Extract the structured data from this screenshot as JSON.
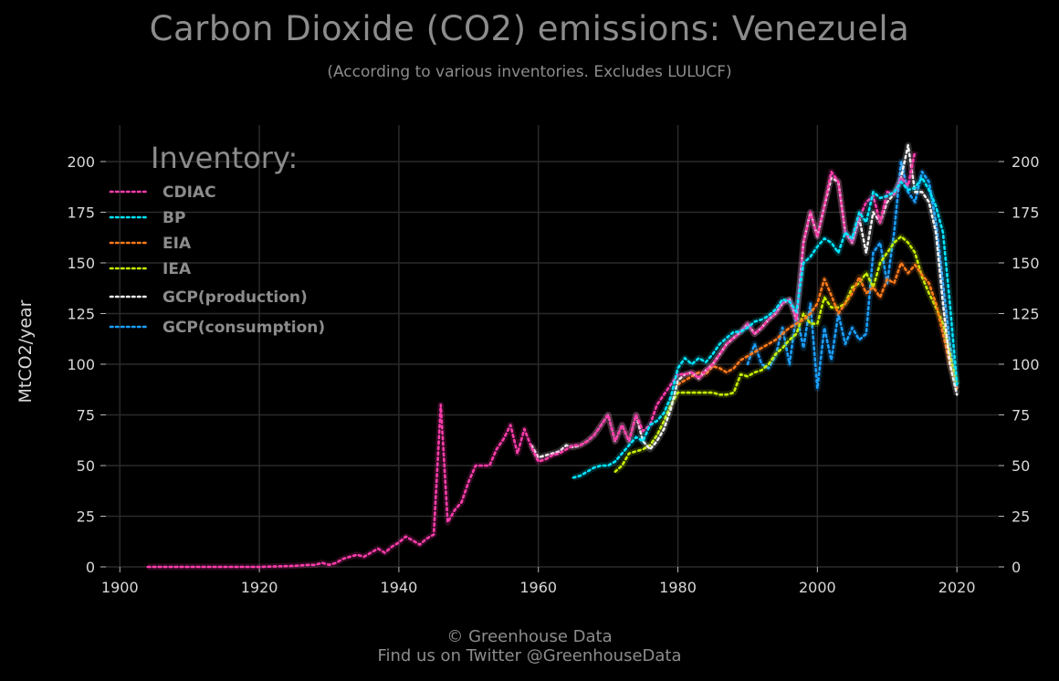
{
  "header": {
    "title": "Carbon Dioxide (CO2) emissions: Venezuela",
    "subtitle": "(According to various inventories. Excludes LULUCF)"
  },
  "footer": {
    "line1": "© Greenhouse Data",
    "line2": "Find us on Twitter @GreenhouseData"
  },
  "chart_data": {
    "type": "line",
    "title": "Carbon Dioxide (CO2) emissions: Venezuela",
    "subtitle": "(According to various inventories. Excludes LULUCF)",
    "xlabel": "",
    "ylabel": "MtCO2/year",
    "xlim": [
      1898,
      2026
    ],
    "ylim": [
      0,
      218
    ],
    "x_ticks": [
      1900,
      1920,
      1940,
      1960,
      1980,
      2000,
      2020
    ],
    "y_ticks": [
      0,
      25,
      50,
      75,
      100,
      125,
      150,
      175,
      200
    ],
    "grid": true,
    "y_axis_both_sides": true,
    "line_style": "dotted",
    "legend_title": "Inventory:",
    "legend_position": "top-left",
    "series": [
      {
        "name": "CDIAC",
        "color": "#ff3cac",
        "x": [
          1904,
          1910,
          1915,
          1920,
          1925,
          1927,
          1928,
          1929,
          1930,
          1931,
          1932,
          1933,
          1934,
          1935,
          1936,
          1937,
          1938,
          1939,
          1940,
          1941,
          1942,
          1943,
          1944,
          1945,
          1946,
          1947,
          1948,
          1949,
          1950,
          1951,
          1952,
          1953,
          1954,
          1955,
          1956,
          1957,
          1958,
          1959,
          1960,
          1961,
          1962,
          1963,
          1964,
          1965,
          1966,
          1967,
          1968,
          1969,
          1970,
          1971,
          1972,
          1973,
          1974,
          1975,
          1976,
          1977,
          1978,
          1979,
          1980,
          1981,
          1982,
          1983,
          1984,
          1985,
          1986,
          1987,
          1988,
          1989,
          1990,
          1991,
          1992,
          1993,
          1994,
          1995,
          1996,
          1997,
          1998,
          1999,
          2000,
          2001,
          2002,
          2003,
          2004,
          2005,
          2006,
          2007,
          2008,
          2009,
          2010,
          2011,
          2012,
          2013,
          2014
        ],
        "y": [
          0,
          0,
          0,
          0,
          0.5,
          1,
          1,
          2,
          1,
          2,
          4,
          5,
          6,
          5,
          7,
          9,
          7,
          10,
          12,
          15,
          13,
          11,
          14,
          16,
          80,
          22,
          28,
          32,
          42,
          50,
          50,
          50,
          58,
          63,
          70,
          56,
          68,
          59,
          52,
          53,
          55,
          56,
          58,
          60,
          60,
          62,
          65,
          70,
          75,
          62,
          70,
          62,
          75,
          67,
          70,
          80,
          85,
          90,
          95,
          95,
          96,
          93,
          97,
          100,
          105,
          110,
          113,
          116,
          120,
          115,
          118,
          122,
          125,
          130,
          132,
          122,
          160,
          175,
          163,
          178,
          195,
          190,
          165,
          160,
          172,
          180,
          183,
          170,
          185,
          184,
          192,
          188,
          205
        ]
      },
      {
        "name": "BP",
        "color": "#00e5ff",
        "x": [
          1965,
          1966,
          1967,
          1968,
          1969,
          1970,
          1971,
          1972,
          1973,
          1974,
          1975,
          1976,
          1977,
          1978,
          1979,
          1980,
          1981,
          1982,
          1983,
          1984,
          1985,
          1986,
          1987,
          1988,
          1989,
          1990,
          1991,
          1992,
          1993,
          1994,
          1995,
          1996,
          1997,
          1998,
          1999,
          2000,
          2001,
          2002,
          2003,
          2004,
          2005,
          2006,
          2007,
          2008,
          2009,
          2010,
          2011,
          2012,
          2013,
          2014,
          2015,
          2016,
          2017,
          2018,
          2019,
          2020
        ],
        "y": [
          44,
          45,
          47,
          49,
          50,
          50,
          52,
          56,
          60,
          64,
          62,
          70,
          72,
          76,
          84,
          98,
          103,
          100,
          103,
          101,
          105,
          110,
          113,
          116,
          116,
          118,
          121,
          122,
          124,
          127,
          132,
          131,
          126,
          150,
          153,
          158,
          162,
          160,
          155,
          165,
          162,
          175,
          170,
          185,
          182,
          183,
          185,
          190,
          186,
          187,
          192,
          186,
          178,
          165,
          130,
          90
        ]
      },
      {
        "name": "EIA",
        "color": "#ff7a1a",
        "x": [
          1980,
          1981,
          1982,
          1983,
          1984,
          1985,
          1986,
          1987,
          1988,
          1989,
          1990,
          1991,
          1992,
          1993,
          1994,
          1995,
          1996,
          1997,
          1998,
          1999,
          2000,
          2001,
          2002,
          2003,
          2004,
          2005,
          2006,
          2007,
          2008,
          2009,
          2010,
          2011,
          2012,
          2013,
          2014,
          2015,
          2016,
          2017,
          2018,
          2019,
          2020
        ],
        "y": [
          90,
          92,
          94,
          96,
          95,
          99,
          98,
          96,
          98,
          102,
          104,
          106,
          108,
          110,
          112,
          115,
          118,
          120,
          122,
          125,
          130,
          142,
          134,
          125,
          130,
          135,
          143,
          135,
          138,
          133,
          142,
          140,
          150,
          145,
          149,
          144,
          140,
          130,
          115,
          100,
          88
        ]
      },
      {
        "name": "IEA",
        "color": "#c6f000",
        "x": [
          1971,
          1972,
          1973,
          1974,
          1975,
          1976,
          1977,
          1978,
          1979,
          1980,
          1981,
          1982,
          1983,
          1984,
          1985,
          1986,
          1987,
          1988,
          1989,
          1990,
          1991,
          1992,
          1993,
          1994,
          1995,
          1996,
          1997,
          1998,
          1999,
          2000,
          2001,
          2002,
          2003,
          2004,
          2005,
          2006,
          2007,
          2008,
          2009,
          2010,
          2011,
          2012,
          2013,
          2014,
          2015,
          2016,
          2017,
          2018,
          2019,
          2020
        ],
        "y": [
          47,
          50,
          56,
          57,
          58,
          60,
          65,
          72,
          80,
          86,
          86,
          86,
          86,
          86,
          86,
          85,
          85,
          86,
          95,
          94,
          96,
          97,
          100,
          105,
          108,
          112,
          115,
          125,
          120,
          120,
          133,
          128,
          128,
          130,
          138,
          140,
          145,
          138,
          150,
          155,
          160,
          163,
          160,
          155,
          143,
          135,
          128,
          120,
          105,
          90
        ]
      },
      {
        "name": "GCP(production)",
        "color": "#f0f0f0",
        "x": [
          1959,
          1960,
          1961,
          1962,
          1963,
          1964,
          1965,
          1966,
          1967,
          1968,
          1969,
          1970,
          1971,
          1972,
          1973,
          1974,
          1975,
          1976,
          1977,
          1978,
          1979,
          1980,
          1981,
          1982,
          1983,
          1984,
          1985,
          1986,
          1987,
          1988,
          1989,
          1990,
          1991,
          1992,
          1993,
          1994,
          1995,
          1996,
          1997,
          1998,
          1999,
          2000,
          2001,
          2002,
          2003,
          2004,
          2005,
          2006,
          2007,
          2008,
          2009,
          2010,
          2011,
          2012,
          2013,
          2014,
          2015,
          2016,
          2017,
          2018,
          2019,
          2020
        ],
        "y": [
          60,
          54,
          55,
          56,
          57,
          60,
          59,
          60,
          62,
          65,
          70,
          75,
          62,
          70,
          62,
          75,
          62,
          58,
          62,
          68,
          78,
          92,
          95,
          96,
          93,
          97,
          100,
          105,
          110,
          113,
          116,
          120,
          115,
          118,
          122,
          125,
          130,
          132,
          122,
          160,
          175,
          163,
          178,
          192,
          190,
          165,
          160,
          172,
          155,
          175,
          170,
          180,
          184,
          192,
          208,
          185,
          185,
          180,
          165,
          130,
          100,
          85
        ]
      },
      {
        "name": "GCP(consumption)",
        "color": "#1a9fff",
        "x": [
          1990,
          1991,
          1992,
          1993,
          1994,
          1995,
          1996,
          1997,
          1998,
          1999,
          2000,
          2001,
          2002,
          2003,
          2004,
          2005,
          2006,
          2007,
          2008,
          2009,
          2010,
          2011,
          2012,
          2013,
          2014,
          2015,
          2016,
          2017,
          2018,
          2019,
          2020
        ],
        "y": [
          100,
          110,
          100,
          98,
          104,
          118,
          100,
          125,
          108,
          130,
          88,
          118,
          102,
          125,
          110,
          118,
          112,
          115,
          155,
          160,
          140,
          165,
          200,
          185,
          180,
          195,
          190,
          170,
          140,
          110,
          88
        ]
      }
    ]
  }
}
